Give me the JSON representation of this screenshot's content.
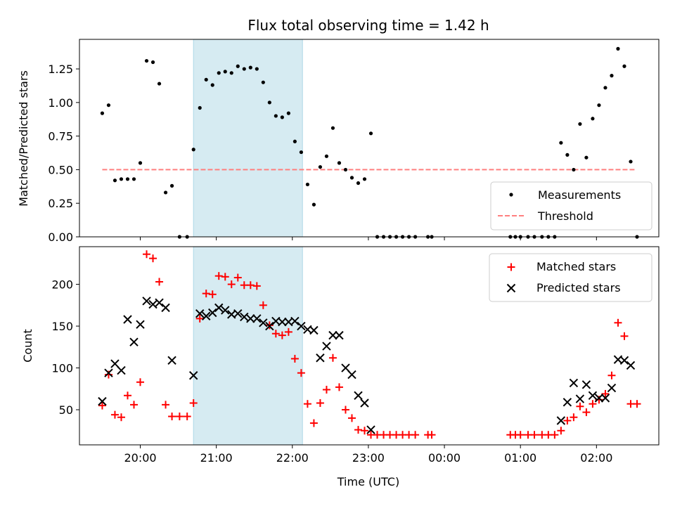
{
  "chart_data": {
    "type": "scatter",
    "title": "Flux total observing time = 1.42 h",
    "xlabel": "Time (UTC)",
    "x_ticks": [
      {
        "h": 20,
        "label": "20:00"
      },
      {
        "h": 21,
        "label": "21:00"
      },
      {
        "h": 22,
        "label": "22:00"
      },
      {
        "h": 23,
        "label": "23:00"
      },
      {
        "h": 24,
        "label": "00:00"
      },
      {
        "h": 25,
        "label": "01:00"
      },
      {
        "h": 26,
        "label": "02:00"
      }
    ],
    "shaded_interval": [
      "20:42",
      "22:08"
    ],
    "colors": {
      "measurements": "#000000",
      "threshold": "#ff7f7f",
      "matched": "#ff0000",
      "predicted": "#000000",
      "shade": "#add8e6"
    },
    "top_panel": {
      "ylabel": "Matched/Predicted stars",
      "ylim": [
        0,
        1.47
      ],
      "yticks": [
        "0.00",
        "0.25",
        "0.50",
        "0.75",
        "1.00",
        "1.25"
      ],
      "legend_position": "lower-right",
      "threshold": {
        "name": "Threshold",
        "value": 0.5,
        "x_range": [
          "19:30",
          "02:30"
        ]
      },
      "measurements": {
        "name": "Measurements",
        "points": [
          [
            "19:30",
            0.92
          ],
          [
            "19:35",
            0.98
          ],
          [
            "19:40",
            0.42
          ],
          [
            "19:45",
            0.43
          ],
          [
            "19:50",
            0.43
          ],
          [
            "19:55",
            0.43
          ],
          [
            "20:00",
            0.55
          ],
          [
            "20:05",
            1.31
          ],
          [
            "20:10",
            1.3
          ],
          [
            "20:15",
            1.14
          ],
          [
            "20:20",
            0.33
          ],
          [
            "20:25",
            0.38
          ],
          [
            "20:31",
            0.0
          ],
          [
            "20:37",
            0.0
          ],
          [
            "20:42",
            0.65
          ],
          [
            "20:47",
            0.96
          ],
          [
            "20:52",
            1.17
          ],
          [
            "20:57",
            1.13
          ],
          [
            "21:02",
            1.22
          ],
          [
            "21:07",
            1.23
          ],
          [
            "21:12",
            1.22
          ],
          [
            "21:17",
            1.27
          ],
          [
            "21:22",
            1.25
          ],
          [
            "21:27",
            1.26
          ],
          [
            "21:32",
            1.25
          ],
          [
            "21:37",
            1.15
          ],
          [
            "21:42",
            1.0
          ],
          [
            "21:47",
            0.9
          ],
          [
            "21:52",
            0.89
          ],
          [
            "21:57",
            0.92
          ],
          [
            "22:02",
            0.71
          ],
          [
            "22:07",
            0.63
          ],
          [
            "22:12",
            0.39
          ],
          [
            "22:17",
            0.24
          ],
          [
            "22:22",
            0.52
          ],
          [
            "22:27",
            0.6
          ],
          [
            "22:32",
            0.81
          ],
          [
            "22:37",
            0.55
          ],
          [
            "22:42",
            0.5
          ],
          [
            "22:47",
            0.44
          ],
          [
            "22:52",
            0.4
          ],
          [
            "22:57",
            0.43
          ],
          [
            "23:02",
            0.77
          ],
          [
            "23:07",
            0.0
          ],
          [
            "23:12",
            0.0
          ],
          [
            "23:17",
            0.0
          ],
          [
            "23:22",
            0.0
          ],
          [
            "23:27",
            0.0
          ],
          [
            "23:32",
            0.0
          ],
          [
            "23:37",
            0.0
          ],
          [
            "23:47",
            0.0
          ],
          [
            "23:50",
            0.0
          ],
          [
            "00:52",
            0.0
          ],
          [
            "00:56",
            0.0
          ],
          [
            "01:00",
            0.0
          ],
          [
            "01:06",
            0.0
          ],
          [
            "01:11",
            0.0
          ],
          [
            "01:17",
            0.0
          ],
          [
            "01:22",
            0.0
          ],
          [
            "01:27",
            0.0
          ],
          [
            "01:32",
            0.7
          ],
          [
            "01:37",
            0.61
          ],
          [
            "01:42",
            0.5
          ],
          [
            "01:47",
            0.84
          ],
          [
            "01:52",
            0.59
          ],
          [
            "01:57",
            0.88
          ],
          [
            "02:02",
            0.98
          ],
          [
            "02:07",
            1.11
          ],
          [
            "02:12",
            1.2
          ],
          [
            "02:17",
            1.4
          ],
          [
            "02:22",
            1.27
          ],
          [
            "02:27",
            0.56
          ],
          [
            "02:32",
            0.0
          ]
        ]
      }
    },
    "bottom_panel": {
      "ylabel": "Count",
      "ylim": [
        8,
        245
      ],
      "yticks": [
        "50",
        "100",
        "150",
        "200"
      ],
      "legend_position": "upper-right",
      "matched": {
        "name": "Matched stars",
        "points": [
          [
            "19:30",
            55
          ],
          [
            "19:35",
            92
          ],
          [
            "19:40",
            44
          ],
          [
            "19:45",
            41
          ],
          [
            "19:50",
            67
          ],
          [
            "19:55",
            56
          ],
          [
            "20:00",
            83
          ],
          [
            "20:05",
            236
          ],
          [
            "20:10",
            231
          ],
          [
            "20:15",
            203
          ],
          [
            "20:20",
            56
          ],
          [
            "20:25",
            42
          ],
          [
            "20:31",
            42
          ],
          [
            "20:37",
            42
          ],
          [
            "20:42",
            58
          ],
          [
            "20:47",
            159
          ],
          [
            "20:52",
            189
          ],
          [
            "20:57",
            188
          ],
          [
            "21:02",
            210
          ],
          [
            "21:07",
            209
          ],
          [
            "21:12",
            200
          ],
          [
            "21:17",
            208
          ],
          [
            "21:22",
            199
          ],
          [
            "21:27",
            199
          ],
          [
            "21:32",
            198
          ],
          [
            "21:37",
            175
          ],
          [
            "21:42",
            151
          ],
          [
            "21:47",
            141
          ],
          [
            "21:52",
            139
          ],
          [
            "21:57",
            143
          ],
          [
            "22:02",
            111
          ],
          [
            "22:07",
            94
          ],
          [
            "22:12",
            57
          ],
          [
            "22:17",
            34
          ],
          [
            "22:22",
            58
          ],
          [
            "22:27",
            74
          ],
          [
            "22:32",
            112
          ],
          [
            "22:37",
            77
          ],
          [
            "22:42",
            50
          ],
          [
            "22:47",
            40
          ],
          [
            "22:52",
            26
          ],
          [
            "22:57",
            25
          ],
          [
            "23:02",
            20
          ],
          [
            "23:07",
            20
          ],
          [
            "23:12",
            20
          ],
          [
            "23:17",
            20
          ],
          [
            "23:22",
            20
          ],
          [
            "23:27",
            20
          ],
          [
            "23:32",
            20
          ],
          [
            "23:37",
            20
          ],
          [
            "23:47",
            20
          ],
          [
            "23:50",
            20
          ],
          [
            "00:52",
            20
          ],
          [
            "00:56",
            20
          ],
          [
            "01:00",
            20
          ],
          [
            "01:06",
            20
          ],
          [
            "01:11",
            20
          ],
          [
            "01:17",
            20
          ],
          [
            "01:22",
            20
          ],
          [
            "01:27",
            20
          ],
          [
            "01:32",
            25
          ],
          [
            "01:37",
            37
          ],
          [
            "01:42",
            41
          ],
          [
            "01:47",
            54
          ],
          [
            "01:52",
            47
          ],
          [
            "01:57",
            57
          ],
          [
            "02:02",
            62
          ],
          [
            "02:07",
            69
          ],
          [
            "02:12",
            91
          ],
          [
            "02:17",
            154
          ],
          [
            "02:22",
            138
          ],
          [
            "02:27",
            57
          ],
          [
            "02:32",
            57
          ]
        ]
      },
      "predicted": {
        "name": "Predicted stars",
        "points": [
          [
            "19:30",
            60
          ],
          [
            "19:35",
            94
          ],
          [
            "19:40",
            105
          ],
          [
            "19:45",
            97
          ],
          [
            "19:50",
            158
          ],
          [
            "19:55",
            131
          ],
          [
            "20:00",
            152
          ],
          [
            "20:05",
            180
          ],
          [
            "20:10",
            176
          ],
          [
            "20:15",
            178
          ],
          [
            "20:20",
            172
          ],
          [
            "20:25",
            109
          ],
          [
            "20:42",
            91
          ],
          [
            "20:47",
            165
          ],
          [
            "20:52",
            162
          ],
          [
            "20:57",
            166
          ],
          [
            "21:02",
            172
          ],
          [
            "21:07",
            169
          ],
          [
            "21:12",
            164
          ],
          [
            "21:17",
            165
          ],
          [
            "21:22",
            161
          ],
          [
            "21:27",
            159
          ],
          [
            "21:32",
            159
          ],
          [
            "21:37",
            154
          ],
          [
            "21:42",
            150
          ],
          [
            "21:47",
            156
          ],
          [
            "21:52",
            155
          ],
          [
            "21:57",
            155
          ],
          [
            "22:02",
            156
          ],
          [
            "22:07",
            150
          ],
          [
            "22:12",
            146
          ],
          [
            "22:17",
            145
          ],
          [
            "22:22",
            112
          ],
          [
            "22:27",
            126
          ],
          [
            "22:32",
            139
          ],
          [
            "22:37",
            139
          ],
          [
            "22:42",
            100
          ],
          [
            "22:47",
            92
          ],
          [
            "22:52",
            67
          ],
          [
            "22:57",
            58
          ],
          [
            "23:02",
            26
          ],
          [
            "01:32",
            37
          ],
          [
            "01:37",
            59
          ],
          [
            "01:42",
            82
          ],
          [
            "01:47",
            63
          ],
          [
            "01:52",
            80
          ],
          [
            "01:57",
            67
          ],
          [
            "02:02",
            64
          ],
          [
            "02:07",
            64
          ],
          [
            "02:12",
            76
          ],
          [
            "02:17",
            110
          ],
          [
            "02:22",
            109
          ],
          [
            "02:27",
            103
          ]
        ]
      }
    }
  }
}
